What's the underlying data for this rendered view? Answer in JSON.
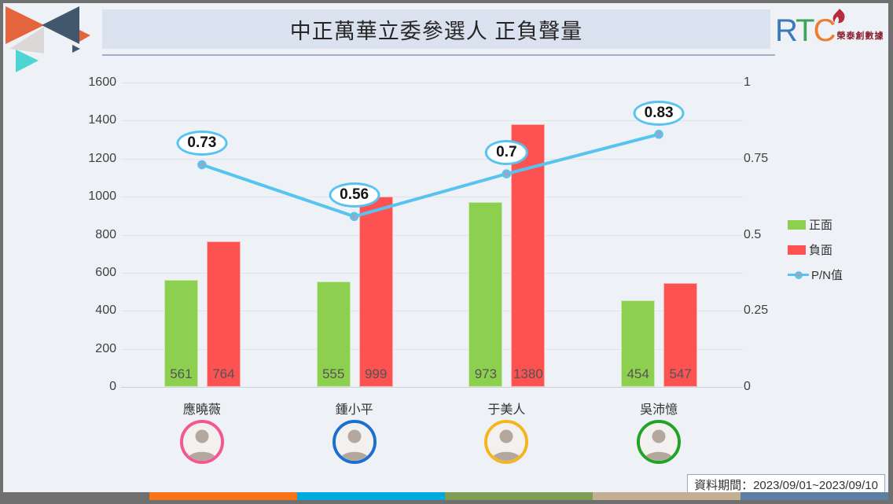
{
  "header": {
    "title": "中正萬華立委參選人 正負聲量",
    "logo": {
      "letters": [
        "R",
        "T",
        "C"
      ],
      "letter_colors": [
        "#3a79bc",
        "#3ba457",
        "#ed7d2b"
      ],
      "flame_icon": "flame-icon",
      "flame_color": "#b52b3f",
      "brand_text": "榮泰創數據",
      "brand_color": "#8c1f30"
    }
  },
  "chart_data": {
    "type": "bar",
    "subtype": "grouped bars with line overlay (dual axis)",
    "categories": [
      "應曉薇",
      "鍾小平",
      "于美人",
      "吳沛憶"
    ],
    "series": [
      {
        "name": "正面",
        "type": "bar",
        "color": "#8dcf4f",
        "axis": "left",
        "values": [
          561,
          555,
          973,
          454
        ]
      },
      {
        "name": "負面",
        "type": "bar",
        "color": "#fc5252",
        "axis": "left",
        "values": [
          764,
          999,
          1380,
          547
        ]
      },
      {
        "name": "P/N值",
        "type": "line",
        "color": "#57c3f0",
        "marker_fill": "#9aa8bc",
        "axis": "right",
        "values": [
          0.73,
          0.56,
          0.7,
          0.83
        ]
      }
    ],
    "left_axis": {
      "min": 0,
      "max": 1600,
      "step": 200,
      "tick_labels": [
        "0",
        "200",
        "400",
        "600",
        "800",
        "1000",
        "1200",
        "1400",
        "1600"
      ]
    },
    "right_axis": {
      "min": 0,
      "max": 1,
      "labels": [
        {
          "v": 0,
          "t": "0"
        },
        {
          "v": 0.25,
          "t": "0.25"
        },
        {
          "v": 0.5,
          "t": "0.5"
        },
        {
          "v": 0.75,
          "t": "0.75"
        },
        {
          "v": 1,
          "t": "1"
        }
      ]
    },
    "grid": true,
    "legend_position": "right"
  },
  "candidates": [
    {
      "name": "應曉薇",
      "ring_color": "#f4568f"
    },
    {
      "name": "鍾小平",
      "ring_color": "#1b6fd0"
    },
    {
      "name": "于美人",
      "ring_color": "#f5b51f"
    },
    {
      "name": "吳沛憶",
      "ring_color": "#22a325"
    }
  ],
  "footer": {
    "period": "資料期間：2023/09/01~2023/09/10",
    "strip_band_color": "#6f6f6f",
    "strip_colors": [
      "#f87218",
      "#00a8dc",
      "#7e9e54",
      "#c4af92",
      "#5c7fa3"
    ]
  },
  "decor": {
    "triangle_colors": {
      "orange": "#e4643c",
      "navy": "#42566e",
      "gray": "#dad9d7",
      "teal": "#4ed4d4"
    }
  }
}
